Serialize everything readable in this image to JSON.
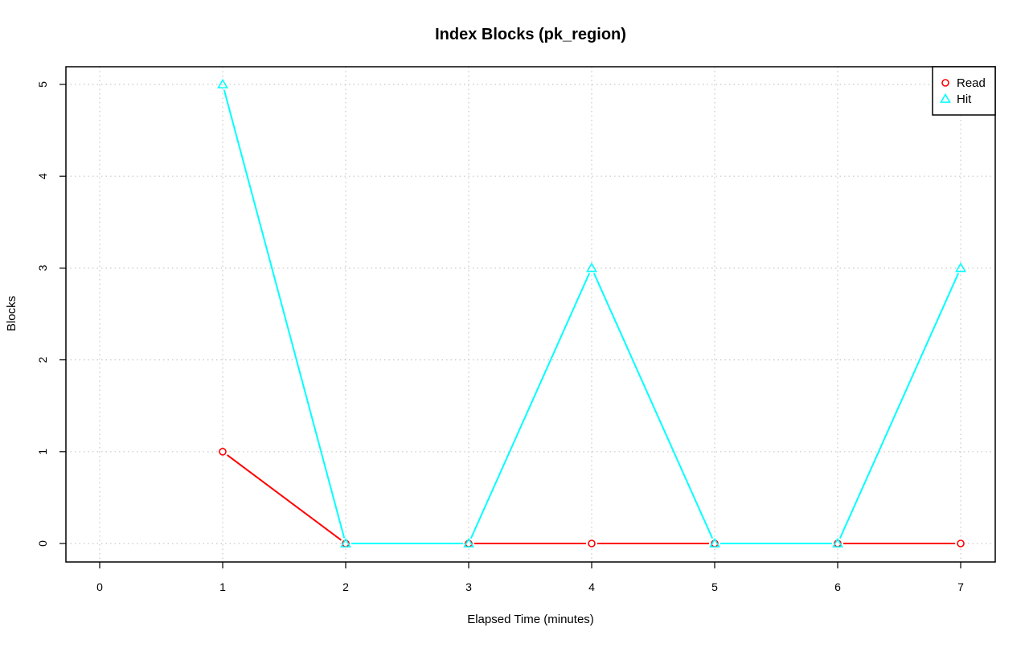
{
  "chart_data": {
    "type": "line",
    "title": "Index Blocks (pk_region)",
    "xlabel": "Elapsed Time (minutes)",
    "ylabel": "Blocks",
    "x": [
      1,
      2,
      3,
      4,
      5,
      6,
      7
    ],
    "xlim": [
      0,
      7
    ],
    "ylim": [
      0,
      5
    ],
    "x_ticks": [
      "0",
      "1",
      "2",
      "3",
      "4",
      "5",
      "6",
      "7"
    ],
    "y_ticks": [
      "0",
      "1",
      "2",
      "3",
      "4",
      "5"
    ],
    "grid": true,
    "legend_position": "top-right",
    "series": [
      {
        "name": "Read",
        "values": [
          1,
          0,
          0,
          0,
          0,
          0,
          0
        ],
        "color": "#ff0000",
        "marker": "circle"
      },
      {
        "name": "Hit",
        "values": [
          5,
          0,
          0,
          3,
          0,
          0,
          3
        ],
        "color": "#00ffff",
        "marker": "triangle"
      }
    ]
  }
}
